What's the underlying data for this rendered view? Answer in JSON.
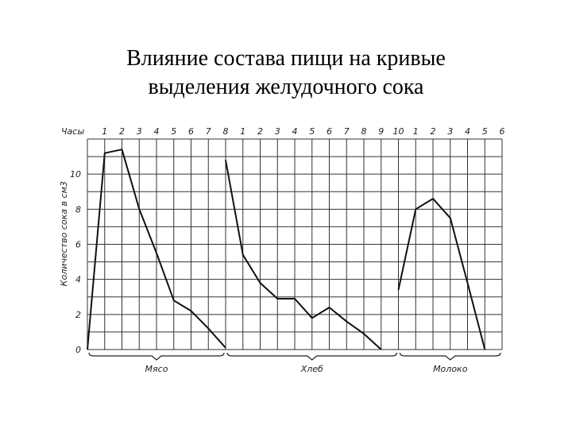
{
  "slide": {
    "title_line1": "Влияние состава пищи на кривые",
    "title_line2": "выделения желудочного сока"
  },
  "chart_data": {
    "type": "line",
    "title": "",
    "xlabel": "Часы",
    "ylabel": "Количество сока в см3",
    "ylim": [
      0,
      12
    ],
    "grid": true,
    "hour_label": "Часы",
    "yticks": [
      "0",
      "2",
      "4",
      "6",
      "8",
      "10"
    ],
    "groups": [
      {
        "name": "Мясо",
        "ticks": [
          "1",
          "2",
          "3",
          "4",
          "5",
          "6",
          "7",
          "8"
        ],
        "values": [
          0,
          11.2,
          11.4,
          8.0,
          5.5,
          2.8,
          2.2,
          1.2,
          0.1
        ]
      },
      {
        "name": "Хлеб",
        "ticks": [
          "1",
          "2",
          "3",
          "4",
          "5",
          "6",
          "7",
          "8",
          "9",
          "10"
        ],
        "values": [
          10.8,
          5.4,
          3.8,
          2.9,
          2.9,
          1.8,
          2.4,
          1.6,
          0.9,
          0
        ]
      },
      {
        "name": "Молоко",
        "ticks": [
          "1",
          "2",
          "3",
          "4",
          "5",
          "6"
        ],
        "values": [
          3.4,
          8.0,
          8.6,
          7.5,
          3.8,
          0
        ]
      }
    ]
  }
}
